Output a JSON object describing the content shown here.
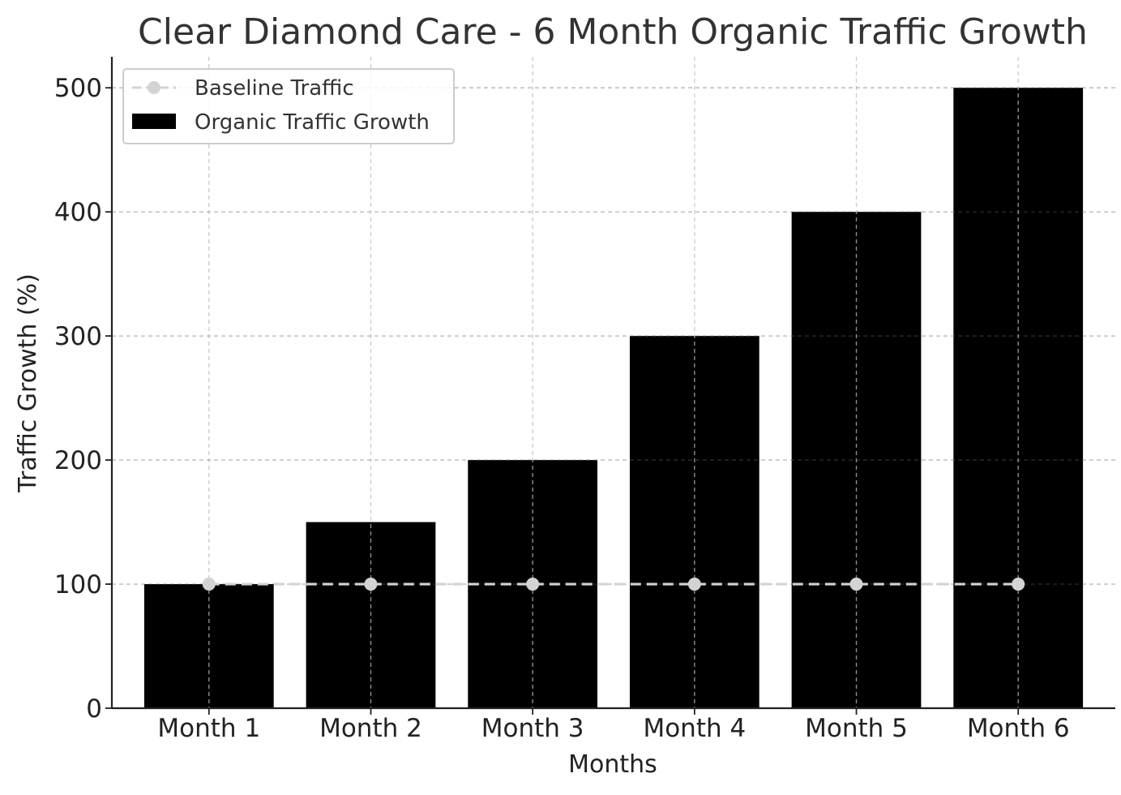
{
  "chart_data": {
    "type": "bar",
    "title": "Clear Diamond Care - 6 Month Organic Traffic Growth",
    "xlabel": "Months",
    "ylabel": "Traffic Growth (%)",
    "categories": [
      "Month 1",
      "Month 2",
      "Month 3",
      "Month 4",
      "Month 5",
      "Month 6"
    ],
    "series": [
      {
        "name": "Organic Traffic Growth",
        "kind": "bar",
        "color": "#000000",
        "values": [
          100,
          150,
          200,
          300,
          400,
          500
        ]
      },
      {
        "name": "Baseline Traffic",
        "kind": "line",
        "style": "dashed",
        "marker": "circle",
        "color": "#d3d3d3",
        "values": [
          100,
          100,
          100,
          100,
          100,
          100
        ]
      }
    ],
    "ylim": [
      0,
      525
    ],
    "yticks": [
      0,
      100,
      200,
      300,
      400,
      500
    ],
    "grid": true,
    "legend_position": "top-left"
  }
}
